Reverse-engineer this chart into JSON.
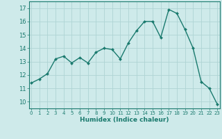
{
  "x": [
    0,
    1,
    2,
    3,
    4,
    5,
    6,
    7,
    8,
    9,
    10,
    11,
    12,
    13,
    14,
    15,
    16,
    17,
    18,
    19,
    20,
    21,
    22,
    23
  ],
  "y": [
    11.4,
    11.7,
    12.1,
    13.2,
    13.4,
    12.9,
    13.3,
    12.9,
    13.7,
    14.0,
    13.9,
    13.2,
    14.4,
    15.3,
    16.0,
    16.0,
    14.8,
    16.9,
    16.6,
    15.4,
    14.0,
    11.5,
    11.0,
    9.8
  ],
  "line_color": "#1a7a6e",
  "marker": "D",
  "marker_size": 2.0,
  "linewidth": 1.0,
  "xlabel": "Humidex (Indice chaleur)",
  "xlabel_fontsize": 6.5,
  "ylabel_ticks": [
    10,
    11,
    12,
    13,
    14,
    15,
    16,
    17
  ],
  "xtick_labels": [
    "0",
    "1",
    "2",
    "3",
    "4",
    "5",
    "6",
    "7",
    "8",
    "9",
    "10",
    "11",
    "12",
    "13",
    "14",
    "15",
    "16",
    "17",
    "18",
    "19",
    "20",
    "21",
    "22",
    "23"
  ],
  "xlim": [
    -0.3,
    23.3
  ],
  "ylim": [
    9.5,
    17.5
  ],
  "bg_color": "#ceeaea",
  "grid_color": "#aed4d4",
  "ytick_fontsize": 6,
  "xtick_fontsize": 5.0
}
